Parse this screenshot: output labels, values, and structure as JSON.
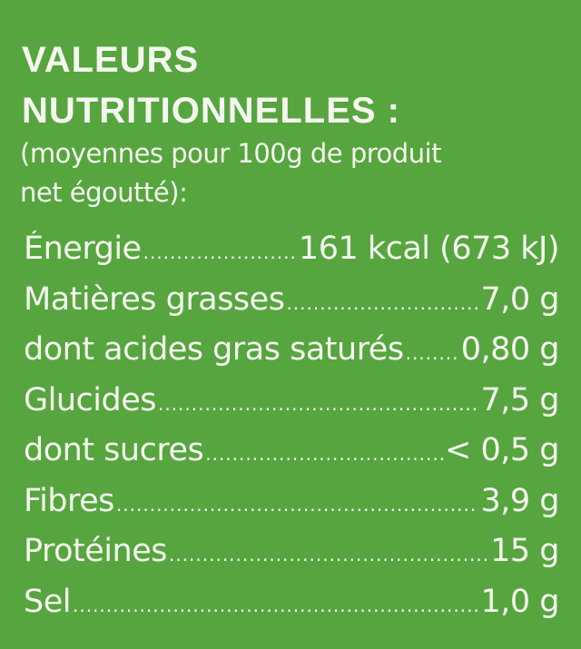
{
  "title": [
    "VALEURS",
    "NUTRITIONNELLES :"
  ],
  "subtitle": [
    "(moyennes pour 100g de produit",
    "net égoutté):"
  ],
  "background_color": "#57a53f",
  "rows": [
    {
      "label": "Énergie",
      "value": "161 kcal (673 kJ)"
    },
    {
      "label": "Matières grasses",
      "value": "7,0 g"
    },
    {
      "label": "dont acides gras saturés",
      "value": "0,80 g"
    },
    {
      "label": "Glucides",
      "value": "7,5 g"
    },
    {
      "label": "dont sucres",
      "value": "< 0,5 g"
    },
    {
      "label": "Fibres",
      "value": "3,9 g"
    },
    {
      "label": "Protéines",
      "value": "15 g"
    },
    {
      "label": "Sel",
      "value": "1,0 g"
    }
  ]
}
